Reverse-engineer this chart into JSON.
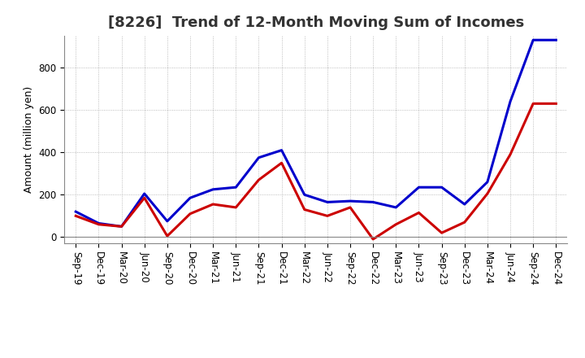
{
  "title": "[8226]  Trend of 12-Month Moving Sum of Incomes",
  "ylabel": "Amount (million yen)",
  "x_labels": [
    "Sep-19",
    "Dec-19",
    "Mar-20",
    "Jun-20",
    "Sep-20",
    "Dec-20",
    "Mar-21",
    "Jun-21",
    "Sep-21",
    "Dec-21",
    "Mar-22",
    "Jun-22",
    "Sep-22",
    "Dec-22",
    "Mar-23",
    "Jun-23",
    "Sep-23",
    "Dec-23",
    "Mar-24",
    "Jun-24",
    "Sep-24",
    "Dec-24"
  ],
  "ordinary_income": [
    120,
    65,
    50,
    205,
    75,
    185,
    225,
    235,
    375,
    410,
    200,
    165,
    170,
    165,
    140,
    235,
    235,
    155,
    260,
    640,
    930,
    930
  ],
  "net_income": [
    100,
    60,
    50,
    185,
    5,
    110,
    155,
    140,
    270,
    350,
    130,
    100,
    140,
    -10,
    60,
    115,
    20,
    70,
    205,
    390,
    630,
    630
  ],
  "ordinary_income_color": "#0000CC",
  "net_income_color": "#CC0000",
  "ylim": [
    -30,
    950
  ],
  "yticks": [
    0,
    200,
    400,
    600,
    800
  ],
  "bg_color": "#FFFFFF",
  "plot_bg_color": "#FFFFFF",
  "grid_color": "#888888",
  "line_width": 2.2,
  "title_fontsize": 13,
  "tick_fontsize": 8.5,
  "ylabel_fontsize": 9
}
